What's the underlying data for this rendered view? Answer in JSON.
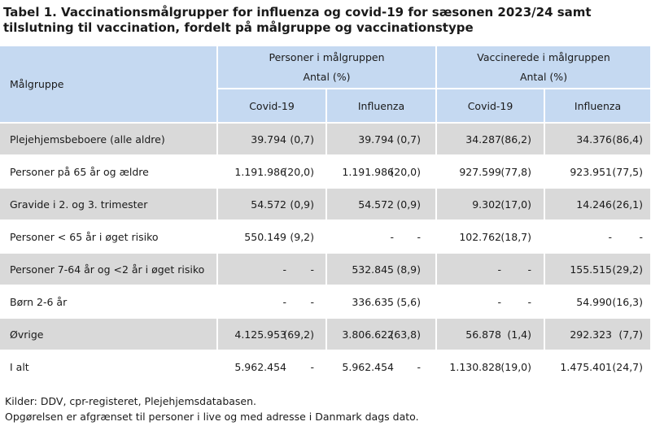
{
  "title": "Tabel 1. Vaccinationsmålgrupper for influenza og covid-19 for sæsonen 2023/24 samt tilslutning til vaccination, fordelt på målgruppe og vaccinationstype",
  "header": {
    "row_label": "Målgruppe",
    "group1": {
      "line1": "Personer i målgruppen",
      "line2": "Antal (%)"
    },
    "group2": {
      "line1": "Vaccinerede i målgruppen",
      "line2": "Antal (%)"
    },
    "sub": [
      "Covid-19",
      "Influenza",
      "Covid-19",
      "Influenza"
    ]
  },
  "rows": [
    {
      "label": "Plejehjemsbeboere (alle aldre)",
      "cells": [
        {
          "n": "39.794",
          "p": "(0,7)"
        },
        {
          "n": "39.794",
          "p": "(0,7)"
        },
        {
          "n": "34.287",
          "p": "(86,2)"
        },
        {
          "n": "34.376",
          "p": "(86,4)"
        }
      ]
    },
    {
      "label": "Personer på 65 år og ældre",
      "cells": [
        {
          "n": "1.191.986",
          "p": "(20,0)"
        },
        {
          "n": "1.191.986",
          "p": "(20,0)"
        },
        {
          "n": "927.599",
          "p": "(77,8)"
        },
        {
          "n": "923.951",
          "p": "(77,5)"
        }
      ]
    },
    {
      "label": "Gravide i 2. og 3. trimester",
      "cells": [
        {
          "n": "54.572",
          "p": "(0,9)"
        },
        {
          "n": "54.572",
          "p": "(0,9)"
        },
        {
          "n": "9.302",
          "p": "(17,0)"
        },
        {
          "n": "14.246",
          "p": "(26,1)"
        }
      ]
    },
    {
      "label": "Personer < 65 år i øget risiko",
      "cells": [
        {
          "n": "550.149",
          "p": "(9,2)"
        },
        {
          "n": "-",
          "p": "-"
        },
        {
          "n": "102.762",
          "p": "(18,7)"
        },
        {
          "n": "-",
          "p": "-"
        }
      ]
    },
    {
      "label": "Personer 7-64 år og <2 år i øget risiko",
      "cells": [
        {
          "n": "-",
          "p": "-"
        },
        {
          "n": "532.845",
          "p": "(8,9)"
        },
        {
          "n": "-",
          "p": "-"
        },
        {
          "n": "155.515",
          "p": "(29,2)"
        }
      ]
    },
    {
      "label": "Børn 2-6 år",
      "cells": [
        {
          "n": "-",
          "p": "-"
        },
        {
          "n": "336.635",
          "p": "(5,6)"
        },
        {
          "n": "-",
          "p": "-"
        },
        {
          "n": "54.990",
          "p": "(16,3)"
        }
      ]
    },
    {
      "label": "Øvrige",
      "cells": [
        {
          "n": "4.125.953",
          "p": "(69,2)"
        },
        {
          "n": "3.806.622",
          "p": "(63,8)"
        },
        {
          "n": "56.878",
          "p": "(1,4)"
        },
        {
          "n": "292.323",
          "p": "(7,7)"
        }
      ]
    },
    {
      "label": "I alt",
      "cells": [
        {
          "n": "5.962.454",
          "p": "-"
        },
        {
          "n": "5.962.454",
          "p": "-"
        },
        {
          "n": "1.130.828",
          "p": "(19,0)"
        },
        {
          "n": "1.475.401",
          "p": "(24,7)"
        }
      ]
    }
  ],
  "footer": {
    "source": "Kilder: DDV, cpr-registeret, Plejehjemsdatabasen.",
    "note": "Opgørelsen er afgrænset til personer i live og med adresse i Danmark dags dato."
  }
}
